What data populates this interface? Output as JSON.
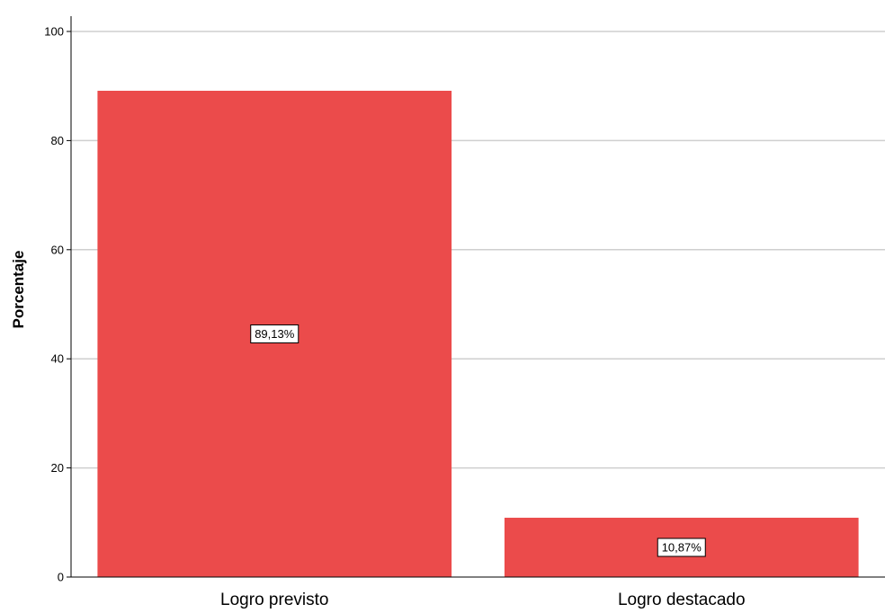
{
  "chart_data": {
    "type": "bar",
    "title": "",
    "xlabel": "",
    "ylabel": "Porcentaje",
    "ylim": [
      0,
      100
    ],
    "yticks": [
      0,
      20,
      40,
      60,
      80,
      100
    ],
    "yticklabels": [
      "0",
      "20",
      "40",
      "60",
      "80",
      "100"
    ],
    "grid": "horizontal",
    "categories": [
      "Logro previsto",
      "Logro destacado"
    ],
    "values": [
      89.13,
      10.87
    ],
    "data_labels": [
      "89,13%",
      "10,87%"
    ],
    "bar_color": "#EB4B4B"
  }
}
